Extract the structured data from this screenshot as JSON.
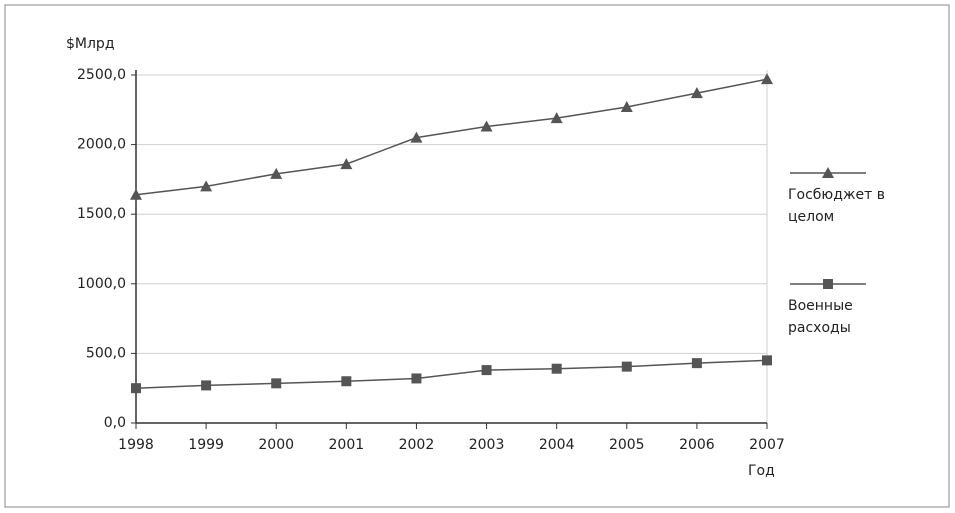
{
  "chart_data": {
    "type": "line",
    "y_label": "$Млрд",
    "x_label": "Год",
    "x": [
      1998,
      1999,
      2000,
      2001,
      2002,
      2003,
      2004,
      2005,
      2006,
      2007
    ],
    "xlim": [
      1998,
      2007
    ],
    "xticks": [
      1998,
      1999,
      2000,
      2001,
      2002,
      2003,
      2004,
      2005,
      2006,
      2007
    ],
    "ylim": [
      0,
      2500
    ],
    "yticks": [
      {
        "value": 0,
        "label": "0,0"
      },
      {
        "value": 500,
        "label": "500,0"
      },
      {
        "value": 1000,
        "label": "1000,0"
      },
      {
        "value": 1500,
        "label": "1500,0"
      },
      {
        "value": 2000,
        "label": "2000,0"
      },
      {
        "value": 2500,
        "label": "2500,0"
      }
    ],
    "grid": true,
    "legend": "right",
    "series": [
      {
        "name": "Госбюджет в целом",
        "color": "#555555",
        "marker": "triangle",
        "values": [
          1640,
          1700,
          1790,
          1860,
          2050,
          2130,
          2190,
          2270,
          2370,
          2470
        ]
      },
      {
        "name": "Военные расходы",
        "color": "#555555",
        "marker": "square",
        "values": [
          250,
          270,
          285,
          300,
          320,
          380,
          390,
          405,
          430,
          450
        ]
      }
    ]
  }
}
